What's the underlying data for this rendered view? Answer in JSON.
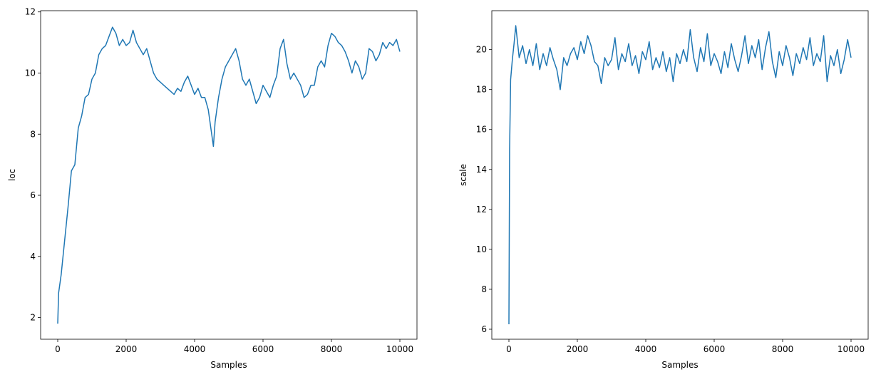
{
  "chart_data": [
    {
      "type": "line",
      "x_label": "Samples",
      "y_label": "loc",
      "color": "#1f77b4",
      "x": [
        0,
        25,
        50,
        100,
        200,
        300,
        400,
        500,
        600,
        700,
        800,
        900,
        1000,
        1100,
        1200,
        1300,
        1400,
        1500,
        1600,
        1700,
        1800,
        1900,
        2000,
        2100,
        2200,
        2300,
        2400,
        2500,
        2600,
        2700,
        2800,
        2900,
        3000,
        3100,
        3200,
        3300,
        3400,
        3500,
        3600,
        3700,
        3800,
        3900,
        4000,
        4100,
        4200,
        4300,
        4400,
        4500,
        4550,
        4600,
        4700,
        4800,
        4900,
        5000,
        5100,
        5200,
        5300,
        5400,
        5500,
        5600,
        5700,
        5800,
        5900,
        6000,
        6100,
        6200,
        6300,
        6400,
        6500,
        6600,
        6700,
        6800,
        6900,
        7000,
        7100,
        7200,
        7300,
        7400,
        7500,
        7600,
        7700,
        7800,
        7900,
        8000,
        8100,
        8200,
        8300,
        8400,
        8500,
        8600,
        8700,
        8800,
        8900,
        9000,
        9100,
        9200,
        9300,
        9400,
        9500,
        9600,
        9700,
        9800,
        9900,
        10000
      ],
      "values": [
        1.8,
        2.8,
        3.0,
        3.4,
        4.5,
        5.6,
        6.8,
        7.0,
        8.2,
        8.6,
        9.2,
        9.3,
        9.8,
        10.0,
        10.6,
        10.8,
        10.9,
        11.2,
        11.5,
        11.3,
        10.9,
        11.1,
        10.9,
        11.0,
        11.4,
        11.0,
        10.8,
        10.6,
        10.8,
        10.4,
        10.0,
        9.8,
        9.7,
        9.6,
        9.5,
        9.4,
        9.3,
        9.5,
        9.4,
        9.7,
        9.9,
        9.6,
        9.3,
        9.5,
        9.2,
        9.2,
        8.8,
        8.0,
        7.6,
        8.4,
        9.2,
        9.8,
        10.2,
        10.4,
        10.6,
        10.8,
        10.4,
        9.8,
        9.6,
        9.8,
        9.4,
        9.0,
        9.2,
        9.6,
        9.4,
        9.2,
        9.6,
        9.9,
        10.8,
        11.1,
        10.3,
        9.8,
        10.0,
        9.8,
        9.6,
        9.2,
        9.3,
        9.6,
        9.6,
        10.2,
        10.4,
        10.2,
        10.9,
        11.3,
        11.2,
        11.0,
        10.9,
        10.7,
        10.4,
        10.0,
        10.4,
        10.2,
        9.8,
        10.0,
        10.8,
        10.7,
        10.4,
        10.6,
        11.0,
        10.8,
        11.0,
        10.9,
        11.1,
        10.7
      ],
      "xlim": [
        -500,
        10500
      ],
      "ylim": [
        1.29,
        12.04
      ],
      "xticks": [
        0,
        2000,
        4000,
        6000,
        8000,
        10000
      ],
      "yticks": [
        2,
        4,
        6,
        8,
        10,
        12
      ]
    },
    {
      "type": "line",
      "x_label": "Samples",
      "y_label": "scale",
      "color": "#1f77b4",
      "x": [
        0,
        20,
        50,
        100,
        150,
        200,
        300,
        400,
        500,
        600,
        700,
        800,
        900,
        1000,
        1100,
        1200,
        1300,
        1400,
        1500,
        1600,
        1700,
        1800,
        1900,
        2000,
        2100,
        2200,
        2300,
        2400,
        2500,
        2600,
        2700,
        2800,
        2900,
        3000,
        3100,
        3200,
        3300,
        3400,
        3500,
        3600,
        3700,
        3800,
        3900,
        4000,
        4100,
        4200,
        4300,
        4400,
        4500,
        4600,
        4700,
        4800,
        4900,
        5000,
        5100,
        5200,
        5300,
        5400,
        5500,
        5600,
        5700,
        5800,
        5900,
        6000,
        6100,
        6200,
        6300,
        6400,
        6500,
        6600,
        6700,
        6800,
        6900,
        7000,
        7100,
        7200,
        7300,
        7400,
        7500,
        7600,
        7700,
        7800,
        7900,
        8000,
        8100,
        8200,
        8300,
        8400,
        8500,
        8600,
        8700,
        8800,
        8900,
        9000,
        9100,
        9200,
        9300,
        9400,
        9500,
        9600,
        9700,
        9800,
        9900,
        10000
      ],
      "values": [
        6.25,
        15,
        18.5,
        19.5,
        20.3,
        21.2,
        19.6,
        20.2,
        19.3,
        20.0,
        19.2,
        20.3,
        19.0,
        19.8,
        19.2,
        20.1,
        19.5,
        19.0,
        18.0,
        19.6,
        19.2,
        19.8,
        20.1,
        19.5,
        20.4,
        19.8,
        20.7,
        20.2,
        19.4,
        19.2,
        18.3,
        19.6,
        19.2,
        19.5,
        20.6,
        19.0,
        19.8,
        19.4,
        20.3,
        19.2,
        19.7,
        18.8,
        19.9,
        19.5,
        20.4,
        19.0,
        19.6,
        19.1,
        19.9,
        18.9,
        19.6,
        18.4,
        19.8,
        19.3,
        20.0,
        19.4,
        21.0,
        19.6,
        18.9,
        20.1,
        19.4,
        20.8,
        19.2,
        19.8,
        19.4,
        18.8,
        19.9,
        19.1,
        20.3,
        19.5,
        18.9,
        19.7,
        20.7,
        19.3,
        20.2,
        19.6,
        20.5,
        19.0,
        20.1,
        20.9,
        19.4,
        18.6,
        19.9,
        19.2,
        20.2,
        19.6,
        18.7,
        19.8,
        19.3,
        20.1,
        19.5,
        20.6,
        19.2,
        19.8,
        19.4,
        20.7,
        18.4,
        19.7,
        19.2,
        20.0,
        18.8,
        19.5,
        20.5,
        19.6
      ],
      "xlim": [
        -500,
        10500
      ],
      "ylim": [
        5.5,
        21.95
      ],
      "xticks": [
        0,
        2000,
        4000,
        6000,
        8000,
        10000
      ],
      "yticks": [
        6,
        8,
        10,
        12,
        14,
        16,
        18,
        20
      ]
    }
  ]
}
